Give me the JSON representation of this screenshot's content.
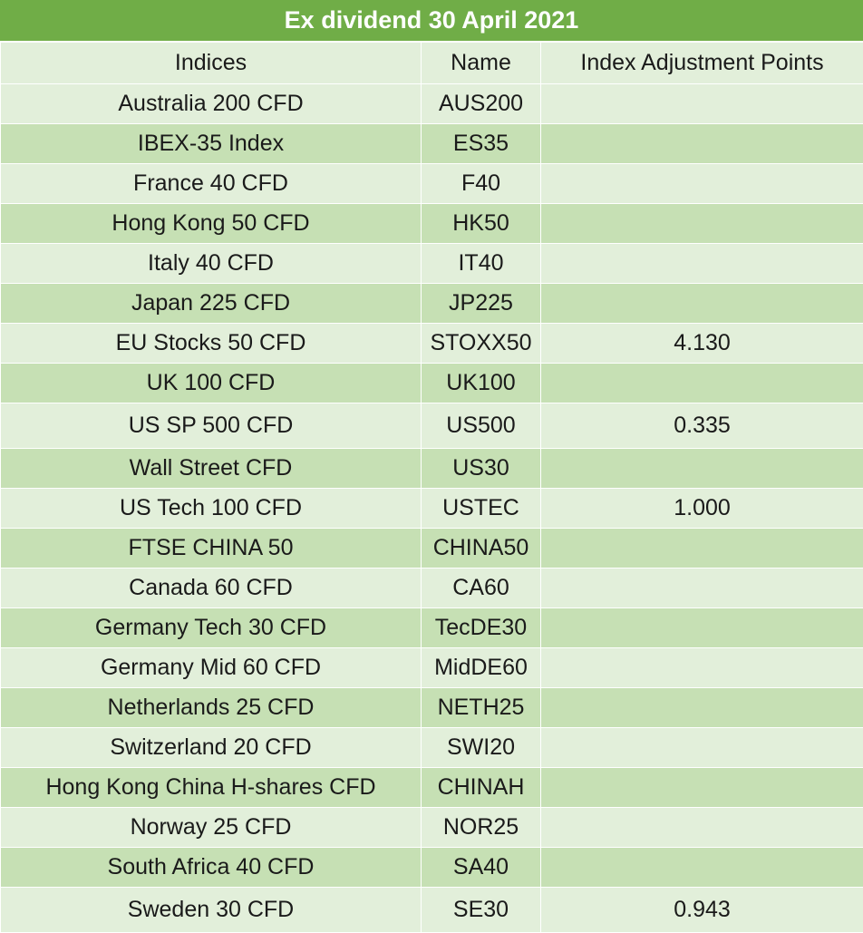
{
  "title": "Ex dividend 30 April 2021",
  "headers": {
    "indices": "Indices",
    "name": "Name",
    "adjustment": "Index Adjustment Points"
  },
  "rows": [
    {
      "index": "Australia 200 CFD",
      "name": "AUS200",
      "points": ""
    },
    {
      "index": "IBEX-35 Index",
      "name": "ES35",
      "points": ""
    },
    {
      "index": "France 40 CFD",
      "name": "F40",
      "points": ""
    },
    {
      "index": "Hong Kong 50 CFD",
      "name": "HK50",
      "points": ""
    },
    {
      "index": "Italy 40 CFD",
      "name": "IT40",
      "points": ""
    },
    {
      "index": "Japan 225 CFD",
      "name": "JP225",
      "points": ""
    },
    {
      "index": "EU Stocks 50 CFD",
      "name": "STOXX50",
      "points": "4.130"
    },
    {
      "index": "UK 100 CFD",
      "name": "UK100",
      "points": ""
    },
    {
      "index": "US SP 500 CFD",
      "name": "US500",
      "points": "0.335"
    },
    {
      "index": "Wall Street CFD",
      "name": "US30",
      "points": ""
    },
    {
      "index": "US Tech 100 CFD",
      "name": "USTEC",
      "points": "1.000"
    },
    {
      "index": "FTSE CHINA 50",
      "name": "CHINA50",
      "points": ""
    },
    {
      "index": "Canada 60 CFD",
      "name": "CA60",
      "points": ""
    },
    {
      "index": "Germany Tech 30 CFD",
      "name": "TecDE30",
      "points": ""
    },
    {
      "index": "Germany Mid 60 CFD",
      "name": "MidDE60",
      "points": ""
    },
    {
      "index": "Netherlands 25 CFD",
      "name": "NETH25",
      "points": ""
    },
    {
      "index": "Switzerland 20 CFD",
      "name": "SWI20",
      "points": ""
    },
    {
      "index": "Hong Kong China H-shares CFD",
      "name": "CHINAH",
      "points": ""
    },
    {
      "index": "Norway 25 CFD",
      "name": "NOR25",
      "points": ""
    },
    {
      "index": "South Africa 40 CFD",
      "name": "SA40",
      "points": ""
    },
    {
      "index": "Sweden 30 CFD",
      "name": "SE30",
      "points": "0.943"
    }
  ],
  "colors": {
    "title_bg": "#70ad47",
    "row_light": "#e2efda",
    "row_dark": "#c6e0b4"
  }
}
